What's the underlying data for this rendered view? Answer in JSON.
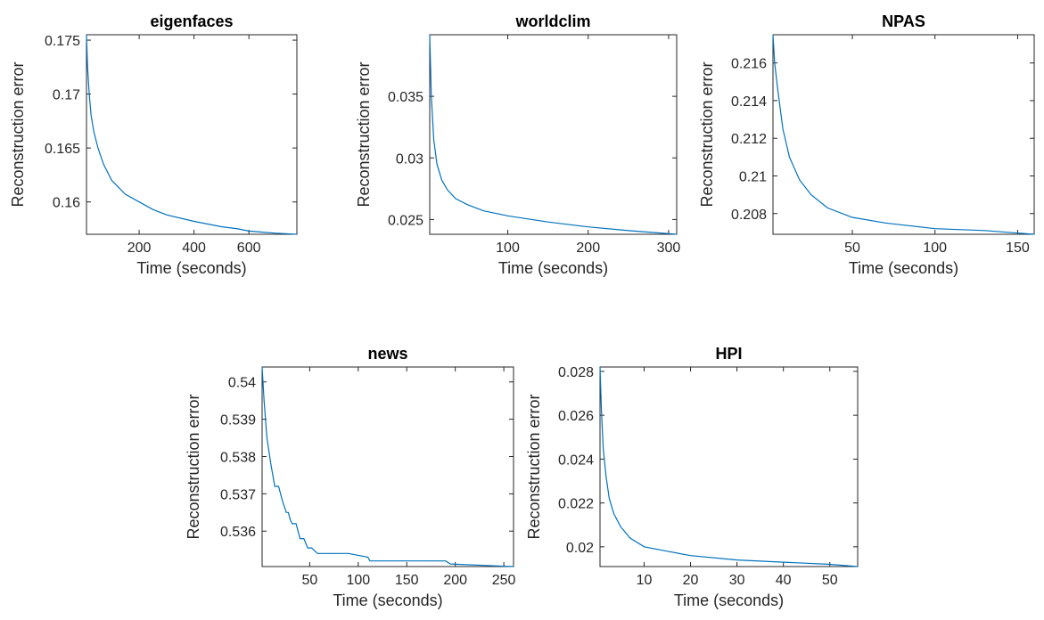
{
  "figure": {
    "background": "#ffffff",
    "line_color": "#0072BD",
    "axis_color": "#262626"
  },
  "chart_data": [
    {
      "type": "line",
      "title": "eigenfaces",
      "xlabel": "Time (seconds)",
      "ylabel": "Reconstruction error",
      "xlim": [
        8,
        775
      ],
      "ylim": [
        0.157,
        0.1755
      ],
      "xticks": [
        200,
        400,
        600
      ],
      "yticks": [
        0.16,
        0.165,
        0.17,
        0.175
      ],
      "x": [
        8,
        12,
        18,
        25,
        35,
        50,
        70,
        100,
        150,
        200,
        250,
        300,
        400,
        500,
        560,
        600,
        650,
        700,
        775
      ],
      "y": [
        0.1755,
        0.1725,
        0.17,
        0.168,
        0.1665,
        0.165,
        0.1635,
        0.162,
        0.1607,
        0.16,
        0.1593,
        0.1588,
        0.1582,
        0.1577,
        0.1575,
        0.1573,
        0.1572,
        0.1571,
        0.157
      ]
    },
    {
      "type": "line",
      "title": "worldclim",
      "xlabel": "Time (seconds)",
      "ylabel": "Reconstruction error",
      "xlim": [
        3,
        310
      ],
      "ylim": [
        0.0238,
        0.04
      ],
      "xticks": [
        100,
        200,
        300
      ],
      "yticks": [
        0.025,
        0.03,
        0.035
      ],
      "x": [
        3,
        5,
        8,
        12,
        18,
        25,
        35,
        50,
        70,
        100,
        150,
        200,
        250,
        310
      ],
      "y": [
        0.04,
        0.035,
        0.0315,
        0.0295,
        0.0282,
        0.0274,
        0.0267,
        0.0262,
        0.0257,
        0.0253,
        0.0248,
        0.0244,
        0.0241,
        0.0238
      ]
    },
    {
      "type": "line",
      "title": "NPAS",
      "xlabel": "Time (seconds)",
      "ylabel": "Reconstruction error",
      "xlim": [
        2,
        160
      ],
      "ylim": [
        0.2069,
        0.2175
      ],
      "xticks": [
        50,
        100,
        150
      ],
      "yticks": [
        0.208,
        0.21,
        0.212,
        0.214,
        0.216
      ],
      "x": [
        2,
        3,
        5,
        8,
        12,
        18,
        25,
        35,
        50,
        70,
        100,
        130,
        160
      ],
      "y": [
        0.2175,
        0.216,
        0.2145,
        0.2125,
        0.211,
        0.2098,
        0.209,
        0.2083,
        0.2078,
        0.2075,
        0.2072,
        0.2071,
        0.2069
      ]
    },
    {
      "type": "line",
      "title": "news",
      "xlabel": "Time (seconds)",
      "ylabel": "Reconstruction error",
      "xlim": [
        1,
        260
      ],
      "ylim": [
        0.53505,
        0.5404
      ],
      "xticks": [
        50,
        100,
        150,
        200,
        250
      ],
      "yticks": [
        0.536,
        0.537,
        0.538,
        0.539,
        0.54
      ],
      "x": [
        1,
        3,
        6,
        10,
        14,
        18,
        22,
        26,
        28,
        30,
        32,
        36,
        38,
        40,
        44,
        48,
        52,
        58,
        70,
        90,
        110,
        112,
        150,
        190,
        195,
        240,
        260
      ],
      "y": [
        0.5404,
        0.5395,
        0.5385,
        0.5378,
        0.5372,
        0.5372,
        0.5368,
        0.5365,
        0.5365,
        0.5363,
        0.5362,
        0.5362,
        0.536,
        0.5358,
        0.5358,
        0.53555,
        0.53555,
        0.5354,
        0.5354,
        0.5354,
        0.5353,
        0.5352,
        0.5352,
        0.5352,
        0.53512,
        0.53507,
        0.53505
      ]
    },
    {
      "type": "line",
      "title": "HPI",
      "xlabel": "Time (seconds)",
      "ylabel": "Reconstruction error",
      "xlim": [
        0.5,
        56
      ],
      "ylim": [
        0.0191,
        0.0282
      ],
      "xticks": [
        10,
        20,
        30,
        40,
        50
      ],
      "yticks": [
        0.02,
        0.022,
        0.024,
        0.026,
        0.028
      ],
      "x": [
        0.5,
        0.8,
        1.2,
        1.8,
        2.5,
        3.5,
        5,
        7,
        10,
        15,
        20,
        30,
        40,
        50,
        56
      ],
      "y": [
        0.0282,
        0.0262,
        0.0245,
        0.0232,
        0.0222,
        0.0215,
        0.0209,
        0.0204,
        0.02,
        0.0198,
        0.0196,
        0.0194,
        0.0193,
        0.0192,
        0.0191
      ]
    }
  ]
}
